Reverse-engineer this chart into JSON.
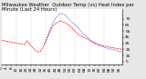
{
  "title": "Milwaukee Weather  Outdoor Temp (vs) Heat Index per Minute (Last 24 Hours)",
  "bg_color": "#e8e8e8",
  "plot_bg_color": "#ffffff",
  "red_line_color": "#ff0000",
  "blue_line_color": "#0000ff",
  "grid_color": "#999999",
  "ylim": [
    0,
    90
  ],
  "yticks_right": [
    75,
    65,
    55,
    45,
    35,
    25,
    15,
    5
  ],
  "red_x": [
    0,
    1,
    2,
    3,
    4,
    5,
    6,
    7,
    8,
    9,
    10,
    11,
    12,
    13,
    14,
    15,
    16,
    17,
    18,
    19,
    20,
    21,
    22,
    23,
    24,
    25,
    26,
    27,
    28,
    29,
    30,
    31,
    32,
    33,
    34,
    35,
    36,
    37,
    38,
    39,
    40,
    41,
    42,
    43,
    44,
    45,
    46,
    47,
    48,
    49,
    50,
    51,
    52,
    53,
    54,
    55,
    56,
    57,
    58,
    59,
    60,
    61,
    62,
    63,
    64,
    65,
    66,
    67,
    68,
    69,
    70,
    71,
    72,
    73,
    74,
    75,
    76,
    77,
    78,
    79,
    80,
    81,
    82,
    83,
    84,
    85,
    86,
    87,
    88,
    89,
    90,
    91,
    92,
    93,
    94,
    95,
    96,
    97,
    98,
    99
  ],
  "red_y": [
    40,
    40,
    39,
    39,
    38,
    38,
    38,
    37,
    37,
    36,
    36,
    36,
    35,
    35,
    35,
    34,
    34,
    34,
    33,
    33,
    37,
    39,
    36,
    34,
    31,
    29,
    27,
    25,
    23,
    22,
    21,
    21,
    22,
    25,
    29,
    33,
    37,
    42,
    47,
    51,
    56,
    60,
    63,
    65,
    67,
    68,
    69,
    70,
    71,
    71,
    70,
    69,
    68,
    67,
    66,
    65,
    63,
    61,
    59,
    57,
    55,
    53,
    51,
    49,
    48,
    47,
    46,
    45,
    44,
    43,
    42,
    41,
    40,
    39,
    38,
    37,
    36,
    35,
    34,
    33,
    33,
    32,
    32,
    31,
    31,
    30,
    30,
    29,
    29,
    28,
    28,
    28,
    27,
    27,
    27,
    26,
    26,
    26,
    25,
    25
  ],
  "blue_x": [
    35,
    36,
    37,
    38,
    39,
    40,
    41,
    42,
    43,
    44,
    45,
    46,
    47,
    48,
    49,
    50,
    51,
    52,
    53,
    54,
    55,
    56,
    57,
    58,
    59,
    60,
    61,
    62,
    63,
    64,
    65,
    66,
    67,
    68,
    69,
    70,
    71,
    72,
    73,
    74,
    75,
    76,
    77,
    78,
    79,
    80,
    81,
    82,
    83,
    84,
    85,
    86,
    87,
    88,
    89,
    90,
    91,
    92,
    93,
    94,
    95,
    96,
    97,
    98,
    99
  ],
  "blue_y": [
    33,
    37,
    42,
    47,
    54,
    59,
    64,
    68,
    72,
    75,
    78,
    80,
    82,
    83,
    83,
    83,
    82,
    81,
    79,
    77,
    75,
    73,
    71,
    69,
    67,
    65,
    63,
    61,
    59,
    57,
    55,
    53,
    51,
    49,
    47,
    45,
    43,
    41,
    39,
    37,
    36,
    35,
    34,
    33,
    32,
    31,
    30,
    30,
    29,
    28,
    28,
    27,
    27,
    26,
    26,
    25,
    25,
    24,
    24,
    23,
    22,
    22,
    21,
    21,
    20
  ],
  "vlines_x": [
    12,
    24,
    36,
    48,
    60,
    72,
    84
  ],
  "title_fontsize": 3.8,
  "tick_fontsize": 3.2,
  "n_points": 100
}
